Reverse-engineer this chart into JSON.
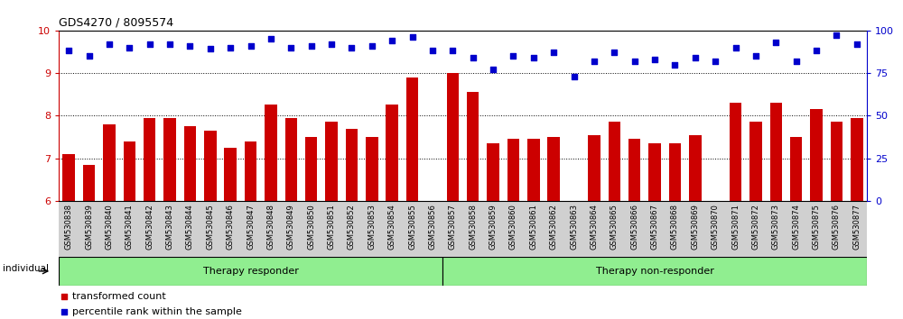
{
  "title": "GDS4270 / 8095574",
  "samples": [
    "GSM530838",
    "GSM530839",
    "GSM530840",
    "GSM530841",
    "GSM530842",
    "GSM530843",
    "GSM530844",
    "GSM530845",
    "GSM530846",
    "GSM530847",
    "GSM530848",
    "GSM530849",
    "GSM530850",
    "GSM530851",
    "GSM530852",
    "GSM530853",
    "GSM530854",
    "GSM530855",
    "GSM530856",
    "GSM530857",
    "GSM530858",
    "GSM530859",
    "GSM530860",
    "GSM530861",
    "GSM530862",
    "GSM530863",
    "GSM530864",
    "GSM530865",
    "GSM530866",
    "GSM530867",
    "GSM530868",
    "GSM530869",
    "GSM530870",
    "GSM530871",
    "GSM530872",
    "GSM530873",
    "GSM530874",
    "GSM530875",
    "GSM530876",
    "GSM530877"
  ],
  "bar_values": [
    7.1,
    6.85,
    7.8,
    7.4,
    7.95,
    7.95,
    7.75,
    7.65,
    7.25,
    7.4,
    8.25,
    7.95,
    7.5,
    7.85,
    7.7,
    7.5,
    8.25,
    8.9,
    6.0,
    9.0,
    8.55,
    7.35,
    7.45,
    7.45,
    7.5,
    6.0,
    7.55,
    7.85,
    7.45,
    7.35,
    7.35,
    7.55,
    6.0,
    8.3,
    7.85,
    8.3,
    7.5,
    8.15,
    7.85,
    7.95
  ],
  "percentile_values": [
    88,
    85,
    92,
    90,
    92,
    92,
    91,
    89,
    90,
    91,
    95,
    90,
    91,
    92,
    90,
    91,
    94,
    96,
    88,
    88,
    84,
    77,
    85,
    84,
    87,
    73,
    82,
    87,
    82,
    83,
    80,
    84,
    82,
    90,
    85,
    93,
    82,
    88,
    97,
    92
  ],
  "groups": [
    {
      "label": "Therapy responder",
      "start": 0,
      "end": 19
    },
    {
      "label": "Therapy non-responder",
      "start": 19,
      "end": 40
    }
  ],
  "group_color": "#90EE90",
  "bar_color": "#CC0000",
  "dot_color": "#0000CC",
  "ylim_left": [
    6,
    10
  ],
  "ylim_right": [
    0,
    100
  ],
  "yticks_left": [
    6,
    7,
    8,
    9,
    10
  ],
  "yticks_right": [
    0,
    25,
    50,
    75,
    100
  ],
  "background_color": "#ffffff"
}
